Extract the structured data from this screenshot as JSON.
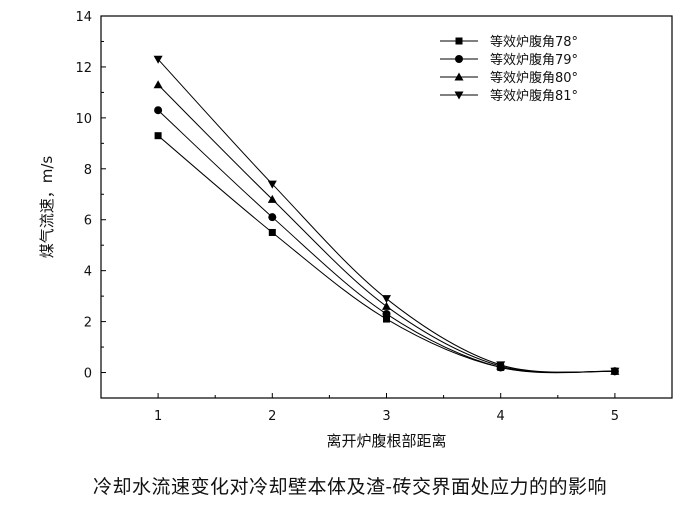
{
  "caption": "冷却水流速变化对冷却壁本体及渣-砖交界面处应力的的影响",
  "chart_data": {
    "type": "line",
    "xlabel": "离开炉腹根部距离",
    "ylabel": "煤气流速，m/s",
    "x": [
      1,
      2,
      3,
      4,
      5
    ],
    "xlim": [
      0.5,
      5.5
    ],
    "ylim": [
      -1,
      14
    ],
    "xticks": [
      "1",
      "2",
      "3",
      "4",
      "5"
    ],
    "yticks": [
      "0",
      "2",
      "4",
      "6",
      "8",
      "10",
      "12",
      "14"
    ],
    "grid": false,
    "legend_position": "top-right",
    "series": [
      {
        "name": "等效炉腹角78°",
        "marker": "square",
        "values": [
          9.3,
          5.5,
          2.1,
          0.2,
          0.05
        ]
      },
      {
        "name": "等效炉腹角79°",
        "marker": "circle",
        "values": [
          10.3,
          6.1,
          2.3,
          0.2,
          0.05
        ]
      },
      {
        "name": "等效炉腹角80°",
        "marker": "triangle-up",
        "values": [
          11.3,
          6.8,
          2.6,
          0.25,
          0.05
        ]
      },
      {
        "name": "等效炉腹角81°",
        "marker": "triangle-down",
        "values": [
          12.3,
          7.4,
          2.9,
          0.3,
          0.05
        ]
      }
    ]
  }
}
